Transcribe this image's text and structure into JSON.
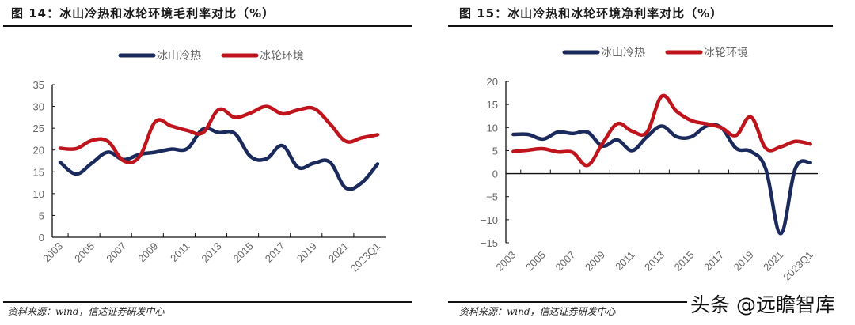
{
  "charts": [
    {
      "figure_title": "图 14：冰山冷热和冰轮环境毛利率对比（%）",
      "source": "资料来源：wind，信达证券研发中心"
    },
    {
      "figure_title": "图 15：冰山冷热和冰轮环境净利率对比（%）",
      "source": "资料来源：wind，信达证券研发中心"
    }
  ],
  "watermark": "头条 @远瞻智库",
  "chart_data": [
    {
      "type": "line",
      "title": "图 14：冰山冷热和冰轮环境毛利率对比（%）",
      "categories": [
        "2003",
        "2004",
        "2005",
        "2006",
        "2007",
        "2008",
        "2009",
        "2010",
        "2011",
        "2012",
        "2013",
        "2014",
        "2015",
        "2016",
        "2017",
        "2018",
        "2019",
        "2020",
        "2021",
        "2022",
        "2023Q1"
      ],
      "tick_labels": [
        "2003",
        "2005",
        "2007",
        "2009",
        "2011",
        "2013",
        "2015",
        "2017",
        "2019",
        "2021",
        "2023Q1"
      ],
      "ylim": [
        0,
        35
      ],
      "yticks": [
        0,
        5,
        10,
        15,
        20,
        25,
        30,
        35
      ],
      "grid": false,
      "legend_position": "top",
      "series": [
        {
          "name": "冰山冷热",
          "color": "#1b2a5c",
          "values": [
            17.2,
            14.5,
            17,
            19.5,
            17.8,
            19,
            19.5,
            20.2,
            20.3,
            24.8,
            24,
            23.8,
            18.5,
            18,
            21,
            16,
            17,
            17.2,
            11.3,
            12.5,
            16.8
          ]
        },
        {
          "name": "冰轮环境",
          "color": "#c0141c",
          "values": [
            20.4,
            20.3,
            22.2,
            22,
            17.5,
            18.5,
            26.5,
            25.5,
            24.5,
            24,
            29.3,
            27.5,
            28.5,
            30,
            28.3,
            29.2,
            29.5,
            26,
            22,
            22.8,
            23.5
          ]
        }
      ]
    },
    {
      "type": "line",
      "title": "图 15：冰山冷热和冰轮环境净利率对比（%）",
      "categories": [
        "2003",
        "2004",
        "2005",
        "2006",
        "2007",
        "2008",
        "2009",
        "2010",
        "2011",
        "2012",
        "2013",
        "2014",
        "2015",
        "2016",
        "2017",
        "2018",
        "2019",
        "2020",
        "2021",
        "2022",
        "2023Q1"
      ],
      "tick_labels": [
        "2003",
        "2005",
        "2007",
        "2009",
        "2011",
        "2013",
        "2015",
        "2017",
        "2019",
        "2021",
        "2023Q1"
      ],
      "ylim": [
        -15,
        20
      ],
      "yticks": [
        -15,
        -10,
        -5,
        0,
        5,
        10,
        15,
        20
      ],
      "grid": false,
      "legend_position": "top",
      "series": [
        {
          "name": "冰山冷热",
          "color": "#1b2a5c",
          "values": [
            8.5,
            8.5,
            7.5,
            9,
            8.7,
            9,
            6,
            7.3,
            5,
            8,
            10.3,
            8,
            8,
            10.3,
            10,
            5.5,
            4.8,
            1.0,
            -13,
            1.2,
            2.4
          ]
        },
        {
          "name": "冰轮环境",
          "color": "#c0141c",
          "values": [
            4.8,
            5.1,
            5.4,
            4.7,
            4.6,
            1.8,
            6.5,
            10.8,
            9.2,
            9,
            16.8,
            13.5,
            11.5,
            10.8,
            10,
            8.3,
            12.3,
            5.5,
            5.8,
            7,
            6.4
          ]
        }
      ]
    }
  ]
}
